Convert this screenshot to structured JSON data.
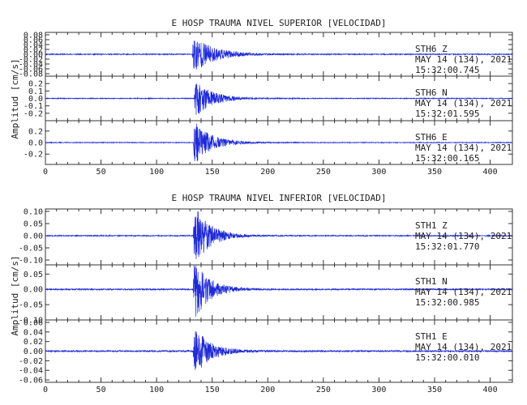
{
  "chart_data": [
    {
      "type": "line",
      "title": "E HOSP TRAUMA NIVEL SUPERIOR [VELOCIDAD]",
      "ylabel": "Amplitud [cm/s]",
      "xlim": [
        0,
        420
      ],
      "xticks": [
        "0",
        "50",
        "100",
        "150",
        "200",
        "250",
        "300",
        "350",
        "400"
      ],
      "line_color": "#1f2bd6",
      "panels": [
        {
          "station": "STH6",
          "component": "Z",
          "date": "MAY 14 (134), 2021",
          "time": "15:32:00.745",
          "ylim": [
            -0.09,
            0.09
          ],
          "yticks": [
            "0.08",
            "0.06",
            "0.04",
            "0.02",
            "0.00",
            "-0.02",
            "-0.04",
            "-0.06",
            "-0.08"
          ],
          "onset": 132,
          "peak": 0.07,
          "noise": 0.002,
          "decay": 18,
          "seed": 11
        },
        {
          "station": "STH6",
          "component": "N",
          "date": "MAY 14 (134), 2021",
          "time": "15:32:01.595",
          "ylim": [
            -0.3,
            0.3
          ],
          "yticks": [
            "0.2",
            "0.1",
            "0.0",
            "-0.1",
            "-0.2"
          ],
          "onset": 134,
          "peak": 0.22,
          "noise": 0.005,
          "decay": 15,
          "seed": 23
        },
        {
          "station": "STH6",
          "component": "E",
          "date": "MAY 14 (134), 2021",
          "time": "15:32:00.165",
          "ylim": [
            -0.38,
            0.38
          ],
          "yticks": [
            "0.2",
            "0.0",
            "-0.2"
          ],
          "onset": 133,
          "peak": 0.33,
          "noise": 0.006,
          "decay": 15,
          "seed": 37
        }
      ]
    },
    {
      "type": "line",
      "title": "E HOSP TRAUMA NIVEL INFERIOR [VELOCIDAD]",
      "ylabel": "Amplitud [cm/s]",
      "xlim": [
        0,
        420
      ],
      "xticks": [
        "0",
        "50",
        "100",
        "150",
        "200",
        "250",
        "300",
        "350",
        "400"
      ],
      "line_color": "#1f2bd6",
      "panels": [
        {
          "station": "STH1",
          "component": "Z",
          "date": "MAY 14 (134), 2021",
          "time": "15:32:01.770",
          "ylim": [
            -0.12,
            0.11
          ],
          "yticks": [
            "0.10",
            "0.05",
            "0.00",
            "-0.05",
            "-0.10"
          ],
          "onset": 133,
          "peak": 0.11,
          "noise": 0.002,
          "decay": 14,
          "seed": 53
        },
        {
          "station": "STH1",
          "component": "N",
          "date": "MAY 14 (134), 2021",
          "time": "15:32:00.985",
          "ylim": [
            -0.1,
            0.08
          ],
          "yticks": [
            "0.05",
            "0.00",
            "-0.05",
            "-0.10"
          ],
          "onset": 133,
          "peak": 0.09,
          "noise": 0.002,
          "decay": 13,
          "seed": 71
        },
        {
          "station": "STH1",
          "component": "E",
          "date": "MAY 14 (134), 2021",
          "time": "15:32:00.010",
          "ylim": [
            -0.065,
            0.065
          ],
          "yticks": [
            "0.06",
            "0.04",
            "0.02",
            "0.00",
            "-0.02",
            "-0.04",
            "-0.06"
          ],
          "onset": 133,
          "peak": 0.045,
          "noise": 0.0015,
          "decay": 14,
          "seed": 89
        }
      ]
    }
  ]
}
